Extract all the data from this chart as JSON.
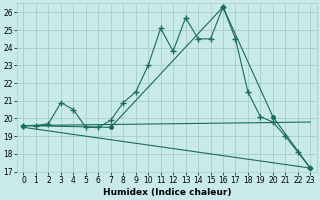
{
  "xlabel": "Humidex (Indice chaleur)",
  "background_color": "#c8eaea",
  "grid_color": "#a8cccc",
  "line_color": "#1a6b5a",
  "xlim": [
    -0.5,
    23.5
  ],
  "ylim": [
    17,
    26.5
  ],
  "yticks": [
    17,
    18,
    19,
    20,
    21,
    22,
    23,
    24,
    25,
    26
  ],
  "xticks": [
    0,
    1,
    2,
    3,
    4,
    5,
    6,
    7,
    8,
    9,
    10,
    11,
    12,
    13,
    14,
    15,
    16,
    17,
    18,
    19,
    20,
    21,
    22,
    23
  ],
  "series_main": {
    "x": [
      0,
      1,
      2,
      3,
      4,
      5,
      6,
      7,
      8,
      9,
      10,
      11,
      12,
      13,
      14,
      15,
      16,
      17,
      18,
      19,
      20,
      21,
      22,
      23
    ],
    "y": [
      19.6,
      19.6,
      19.7,
      20.9,
      20.5,
      19.5,
      19.5,
      19.9,
      20.9,
      21.5,
      23.0,
      25.1,
      23.8,
      25.7,
      24.5,
      24.5,
      26.3,
      24.5,
      21.5,
      20.1,
      19.8,
      19.0,
      18.1,
      17.2
    ]
  },
  "series_line1": {
    "x": [
      0,
      7,
      16,
      20,
      23
    ],
    "y": [
      19.6,
      19.5,
      26.3,
      20.1,
      17.2
    ]
  },
  "series_line2": {
    "x": [
      0,
      23
    ],
    "y": [
      19.6,
      19.8
    ]
  },
  "series_line3": {
    "x": [
      0,
      23
    ],
    "y": [
      19.5,
      17.2
    ]
  }
}
